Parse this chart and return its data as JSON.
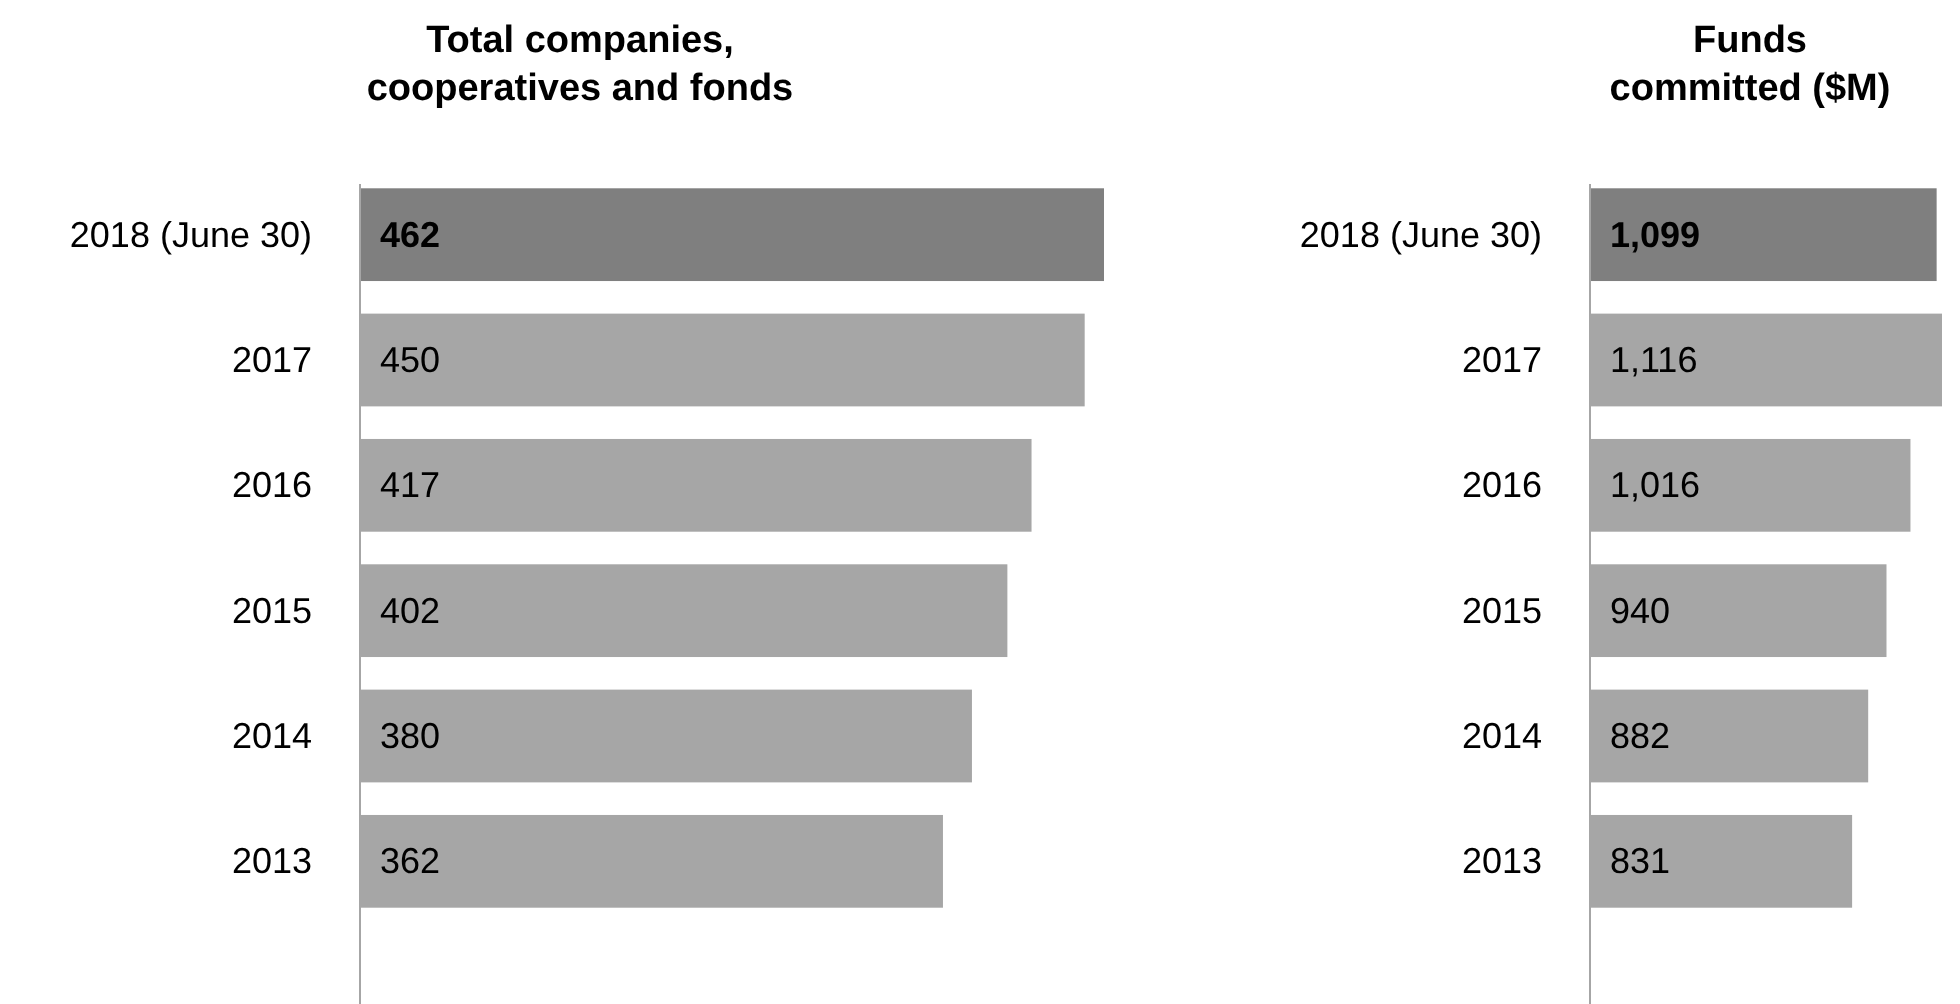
{
  "chart_data": [
    {
      "type": "bar",
      "orientation": "horizontal",
      "title": "Total companies,\ncooperatives and fonds",
      "categories": [
        "2018 (June 30)",
        "2017",
        "2016",
        "2015",
        "2014",
        "2013"
      ],
      "values": [
        462,
        450,
        417,
        402,
        380,
        362
      ],
      "colors": [
        "#7f7f7f",
        "#a6a6a6",
        "#a6a6a6",
        "#a6a6a6",
        "#a6a6a6",
        "#a6a6a6"
      ],
      "value_labels": [
        "462",
        "450",
        "417",
        "402",
        "380",
        "362"
      ],
      "tick_labels": "y"
    },
    {
      "type": "bar",
      "orientation": "horizontal",
      "title": "Funds\ncommitted ($M)",
      "categories": [
        "2018 (June 30)",
        "2017",
        "2016",
        "2015",
        "2014",
        "2013"
      ],
      "values": [
        1099,
        1116,
        1016,
        940,
        882,
        831
      ],
      "colors": [
        "#7f7f7f",
        "#a6a6a6",
        "#a6a6a6",
        "#a6a6a6",
        "#a6a6a6",
        "#a6a6a6"
      ],
      "value_labels": [
        "1,099",
        "1,116",
        "1,016",
        "940",
        "882",
        "831"
      ],
      "tick_labels": "y"
    }
  ]
}
